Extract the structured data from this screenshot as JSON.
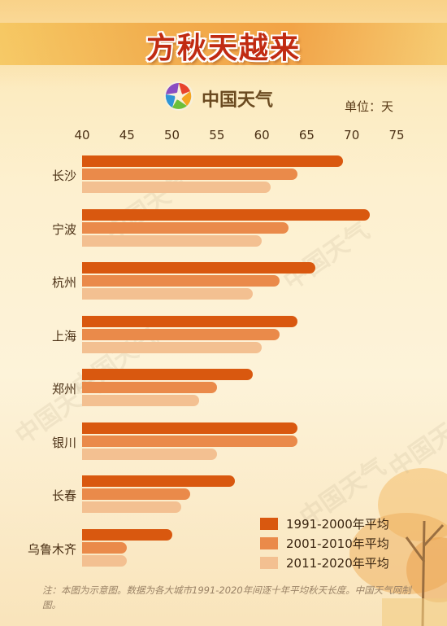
{
  "title": "方秋天越来",
  "brand": "中国天气",
  "unit_label": "单位：天",
  "watermark_text": "中国天气",
  "note": "注：本图为示意图。数据为各大城市1991-2020年间逐十年平均秋天长度。中国天气网制图。",
  "colors": {
    "series_1": "#d9580f",
    "series_2": "#ea8a4a",
    "series_3": "#f3c091",
    "title": "#c12b12"
  },
  "chart_data": {
    "type": "bar",
    "orientation": "horizontal",
    "categories": [
      "长沙",
      "宁波",
      "杭州",
      "上海",
      "郑州",
      "银川",
      "长春",
      "乌鲁木齐"
    ],
    "series": [
      {
        "name": "1991-2000年平均",
        "values": [
          69,
          72,
          66,
          64,
          59,
          64,
          57,
          50
        ]
      },
      {
        "name": "2001-2010年平均",
        "values": [
          64,
          63,
          62,
          62,
          55,
          64,
          52,
          45
        ]
      },
      {
        "name": "2011-2020年平均",
        "values": [
          61,
          60,
          59,
          60,
          53,
          55,
          51,
          45
        ]
      }
    ],
    "xlim": [
      40,
      75
    ],
    "xticks": [
      40,
      45,
      50,
      55,
      60,
      65,
      70,
      75
    ],
    "legend_position": "bottom-right",
    "grid": false
  }
}
